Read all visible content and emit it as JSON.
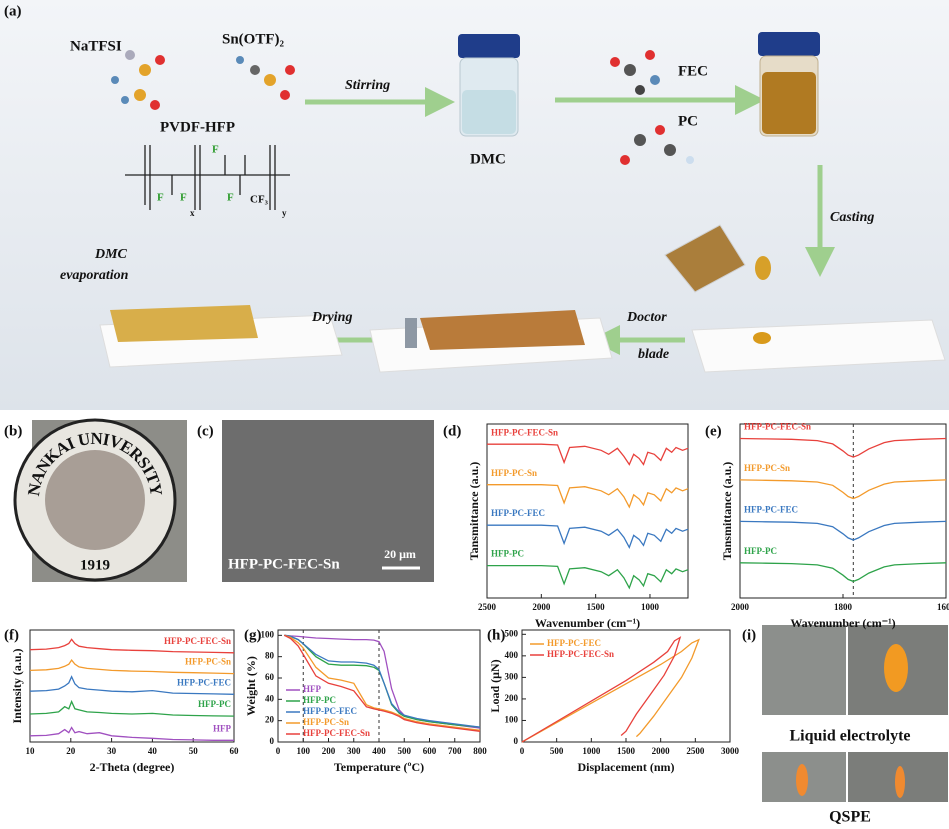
{
  "diagram": {
    "label": "(a)",
    "reagent_1": "NaTFSI",
    "reagent_2": "Sn(OTF)₂",
    "polymer": "PVDF-HFP",
    "formula": [
      "F",
      "F",
      "F",
      "F",
      "CF₃",
      "x",
      "y"
    ],
    "stirring": "Stirring",
    "solvent": "DMC",
    "additive_1": "FEC",
    "additive_2": "PC",
    "casting": "Casting",
    "evaporation": [
      "DMC",
      "evaporation"
    ],
    "drying": "Drying",
    "doctor_blade": [
      "Doctor",
      "blade"
    ]
  },
  "photo_b": {
    "label": "(b)",
    "ring_text": "NANKAI UNIVERSITY",
    "year": "1919"
  },
  "image_c": {
    "label": "(c)",
    "caption": "HFP-PC-FEC-Sn",
    "scale": "20 μm"
  },
  "chart_data": [
    {
      "type": "line",
      "panel_label": "(d)",
      "x_label": "Wavenumber (cm⁻¹)",
      "y_label": "Tansmittance (a.u.)",
      "legend": "inline",
      "x": [
        2500,
        2200,
        2000,
        1850,
        1790,
        1740,
        1600,
        1450,
        1380,
        1300,
        1240,
        1190,
        1150,
        1100,
        1060,
        1020,
        960,
        900,
        850,
        800,
        760,
        700,
        650
      ],
      "xlim": [
        2500,
        650
      ],
      "xticks": [
        2500,
        2000,
        1500,
        1000
      ],
      "ylim": [
        0,
        4.3
      ],
      "series": [
        {
          "name": "HFP-PC-FEC-Sn",
          "color": "#e8413c",
          "values": [
            3.8,
            3.8,
            3.8,
            3.78,
            3.35,
            3.72,
            3.75,
            3.65,
            3.55,
            3.7,
            3.5,
            3.3,
            3.55,
            3.45,
            3.3,
            3.6,
            3.55,
            3.4,
            3.7,
            3.6,
            3.72,
            3.65,
            3.7
          ]
        },
        {
          "name": "HFP-PC-Sn",
          "color": "#f39a2b",
          "values": [
            2.8,
            2.8,
            2.8,
            2.78,
            2.35,
            2.72,
            2.75,
            2.65,
            2.55,
            2.7,
            2.5,
            2.25,
            2.55,
            2.45,
            2.3,
            2.6,
            2.55,
            2.4,
            2.7,
            2.6,
            2.72,
            2.65,
            2.7
          ]
        },
        {
          "name": "HFP-PC-FEC",
          "color": "#3a78c0",
          "values": [
            1.8,
            1.8,
            1.8,
            1.78,
            1.35,
            1.72,
            1.75,
            1.65,
            1.55,
            1.7,
            1.5,
            1.25,
            1.55,
            1.45,
            1.3,
            1.6,
            1.55,
            1.4,
            1.7,
            1.6,
            1.72,
            1.65,
            1.7
          ]
        },
        {
          "name": "HFP-PC",
          "color": "#2ea34a",
          "values": [
            0.8,
            0.8,
            0.8,
            0.78,
            0.35,
            0.72,
            0.75,
            0.65,
            0.55,
            0.7,
            0.5,
            0.25,
            0.55,
            0.45,
            0.3,
            0.6,
            0.55,
            0.4,
            0.7,
            0.6,
            0.72,
            0.65,
            0.7
          ]
        }
      ]
    },
    {
      "type": "line",
      "panel_label": "(e)",
      "x_label": "Wavenumber (cm⁻¹)",
      "y_label": "Tansmittance (a.u.)",
      "legend": "inline",
      "marker_x": [
        1780
      ],
      "x": [
        2000,
        1950,
        1900,
        1850,
        1820,
        1800,
        1790,
        1780,
        1770,
        1750,
        1720,
        1700,
        1650,
        1600
      ],
      "xlim": [
        2000,
        1600
      ],
      "xticks": [
        2000,
        1800,
        1600
      ],
      "ylim": [
        0,
        4.2
      ],
      "series": [
        {
          "name": "HFP-PC-FEC-Sn",
          "color": "#e8413c",
          "values": [
            3.85,
            3.84,
            3.83,
            3.8,
            3.72,
            3.55,
            3.45,
            3.4,
            3.45,
            3.6,
            3.75,
            3.8,
            3.83,
            3.85
          ]
        },
        {
          "name": "HFP-PC-Sn",
          "color": "#f39a2b",
          "values": [
            2.85,
            2.84,
            2.83,
            2.8,
            2.72,
            2.55,
            2.45,
            2.4,
            2.45,
            2.6,
            2.75,
            2.8,
            2.83,
            2.85
          ]
        },
        {
          "name": "HFP-PC-FEC",
          "color": "#3a78c0",
          "values": [
            1.85,
            1.84,
            1.83,
            1.8,
            1.72,
            1.55,
            1.45,
            1.4,
            1.45,
            1.6,
            1.75,
            1.8,
            1.83,
            1.85
          ]
        },
        {
          "name": "HFP-PC",
          "color": "#2ea34a",
          "values": [
            0.85,
            0.84,
            0.83,
            0.8,
            0.72,
            0.55,
            0.45,
            0.4,
            0.45,
            0.6,
            0.75,
            0.8,
            0.83,
            0.85
          ]
        }
      ]
    },
    {
      "type": "line",
      "panel_label": "(f)",
      "x_label": "2-Theta (degree)",
      "y_label": "Intensity (a.u.)",
      "legend": "inline",
      "x": [
        10,
        14,
        17,
        18.5,
        19.5,
        20.2,
        21,
        22,
        24,
        27,
        30,
        35,
        40,
        45,
        50,
        55,
        60
      ],
      "xlim": [
        10,
        60
      ],
      "xticks": [
        10,
        20,
        30,
        40,
        50,
        60
      ],
      "ylim": [
        0,
        5.4
      ],
      "series": [
        {
          "name": "HFP-PC-FEC-Sn",
          "color": "#e8413c",
          "values": [
            4.45,
            4.48,
            4.55,
            4.65,
            4.75,
            4.95,
            4.75,
            4.62,
            4.55,
            4.5,
            4.45,
            4.42,
            4.4,
            4.36,
            4.34,
            4.32,
            4.3
          ]
        },
        {
          "name": "HFP-PC-Sn",
          "color": "#f39a2b",
          "values": [
            3.45,
            3.48,
            3.55,
            3.65,
            3.75,
            3.95,
            3.75,
            3.62,
            3.55,
            3.5,
            3.45,
            3.42,
            3.4,
            3.36,
            3.34,
            3.32,
            3.3
          ]
        },
        {
          "name": "HFP-PC-FEC",
          "color": "#3a78c0",
          "values": [
            2.45,
            2.48,
            2.55,
            2.7,
            2.85,
            3.15,
            2.8,
            2.62,
            2.55,
            2.5,
            2.45,
            2.42,
            2.48,
            2.36,
            2.34,
            2.32,
            2.3
          ]
        },
        {
          "name": "HFP-PC",
          "color": "#2ea34a",
          "values": [
            1.35,
            1.38,
            1.45,
            1.7,
            1.6,
            1.95,
            1.6,
            1.55,
            1.45,
            1.42,
            1.38,
            1.35,
            1.38,
            1.3,
            1.28,
            1.26,
            1.25
          ]
        },
        {
          "name": "HFP",
          "color": "#a050c0",
          "values": [
            0.3,
            0.32,
            0.4,
            0.6,
            0.45,
            0.7,
            0.45,
            0.5,
            0.4,
            0.45,
            0.3,
            0.22,
            0.18,
            0.12,
            0.1,
            0.08,
            0.08
          ]
        }
      ]
    },
    {
      "type": "line",
      "panel_label": "(g)",
      "x_label": "Temperature (ºC)",
      "y_label": "Weight (%)",
      "legend": "lower left",
      "marker_x": [
        100,
        400
      ],
      "x": [
        25,
        50,
        80,
        100,
        150,
        200,
        250,
        300,
        350,
        380,
        400,
        420,
        450,
        480,
        500,
        550,
        600,
        700,
        800
      ],
      "xlim": [
        0,
        800
      ],
      "xticks": [
        0,
        100,
        200,
        300,
        400,
        500,
        600,
        700,
        800
      ],
      "ylim": [
        0,
        105
      ],
      "yticks": [
        0,
        20,
        40,
        60,
        80,
        100
      ],
      "series": [
        {
          "name": "HFP",
          "color": "#a050c0",
          "values": [
            100,
            99.5,
            99,
            98.5,
            97.5,
            97,
            96.5,
            96,
            96,
            95.5,
            94,
            85,
            50,
            30,
            25,
            21,
            19,
            16,
            13
          ]
        },
        {
          "name": "HFP-PC",
          "color": "#2ea34a",
          "values": [
            100,
            99,
            96,
            92,
            80,
            73,
            72,
            72,
            71.5,
            70,
            67,
            55,
            35,
            27,
            24,
            21,
            19,
            16,
            14
          ]
        },
        {
          "name": "HFP-PC-FEC",
          "color": "#3a78c0",
          "values": [
            100,
            99,
            96,
            92,
            82,
            76,
            75,
            75,
            74,
            72,
            68,
            55,
            36,
            28,
            25,
            22,
            20,
            17,
            14
          ]
        },
        {
          "name": "HFP-PC-Sn",
          "color": "#f39a2b",
          "values": [
            100,
            98,
            93,
            88,
            70,
            60,
            58,
            55,
            35,
            32,
            31,
            30,
            28,
            25,
            22,
            19,
            17,
            14,
            11
          ]
        },
        {
          "name": "HFP-PC-FEC-Sn",
          "color": "#e8413c",
          "values": [
            100,
            97,
            90,
            82,
            62,
            55,
            52,
            48,
            33,
            31,
            30,
            29,
            27,
            24,
            21,
            18,
            16,
            13,
            10
          ]
        }
      ]
    },
    {
      "type": "line",
      "panel_label": "(h)",
      "x_label": "Displacement (nm)",
      "y_label": "Load (μN)",
      "legend": "upper left",
      "xlim": [
        0,
        3000
      ],
      "xticks": [
        0,
        500,
        1000,
        1500,
        2000,
        2500,
        3000
      ],
      "ylim": [
        0,
        520
      ],
      "yticks": [
        0,
        100,
        200,
        300,
        400,
        500
      ],
      "series": [
        {
          "name": "HFP-PC-FEC",
          "color": "#f39a2b",
          "x": [
            0,
            500,
            1000,
            1500,
            2000,
            2300,
            2450,
            2550,
            2450,
            2300,
            2100,
            1900,
            1700,
            1650
          ],
          "values": [
            0,
            90,
            180,
            270,
            360,
            420,
            460,
            475,
            390,
            300,
            210,
            120,
            40,
            25
          ]
        },
        {
          "name": "HFP-PC-FEC-Sn",
          "color": "#e8413c",
          "x": [
            0,
            500,
            1000,
            1500,
            1900,
            2100,
            2200,
            2280,
            2200,
            2050,
            1850,
            1650,
            1500,
            1430
          ],
          "values": [
            0,
            95,
            190,
            285,
            370,
            420,
            470,
            485,
            400,
            310,
            220,
            130,
            50,
            30
          ]
        }
      ]
    }
  ],
  "photos_i": {
    "label": "(i)",
    "top_caption": "Liquid electrolyte",
    "bottom_caption": "QSPE"
  }
}
